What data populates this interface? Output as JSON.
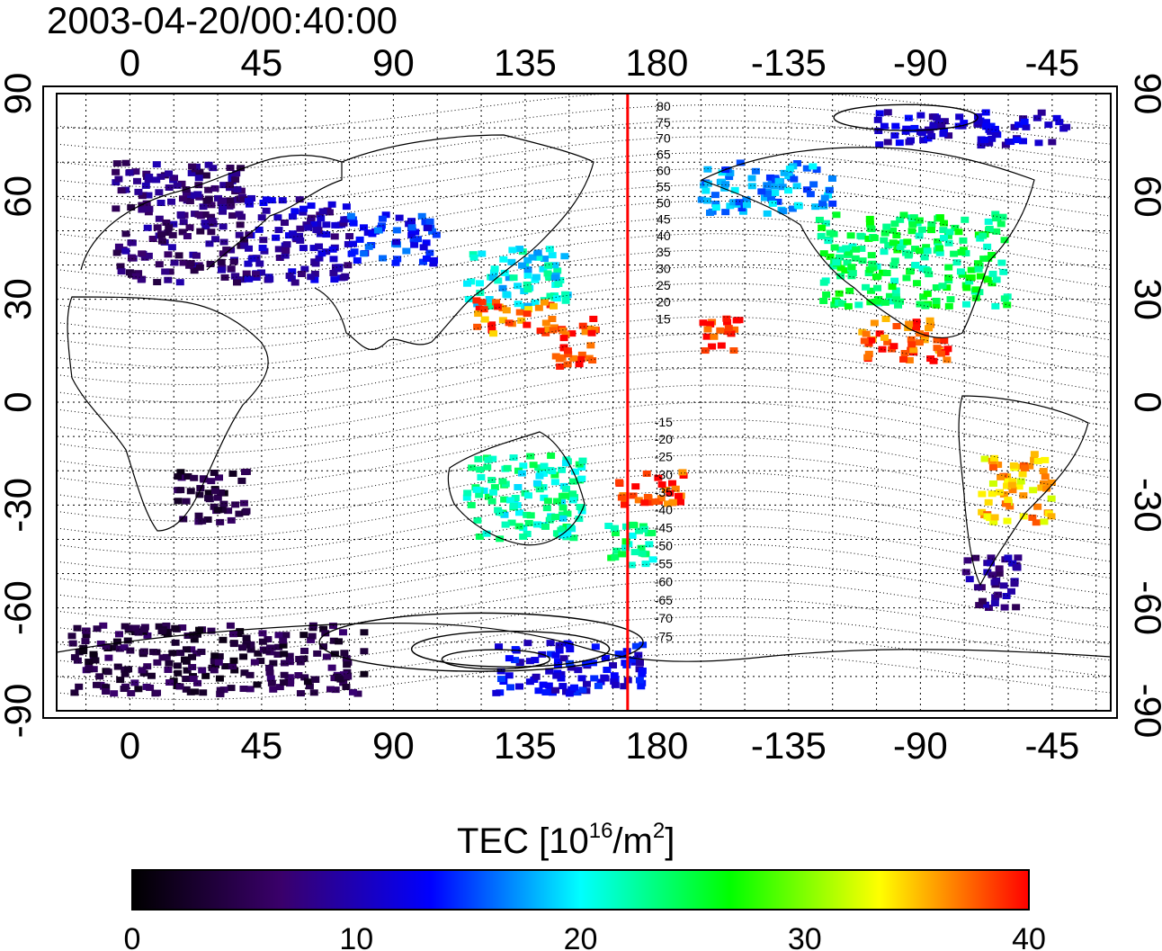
{
  "title": "2003-04-20/00:40:00",
  "x_ticks": [
    "0",
    "45",
    "90",
    "135",
    "180",
    "-135",
    "-90",
    "-45"
  ],
  "x_tick_lons": [
    0,
    45,
    90,
    135,
    180,
    225,
    270,
    315
  ],
  "y_ticks": [
    "90",
    "60",
    "30",
    "0",
    "-30",
    "-60",
    "-90"
  ],
  "y_tick_lats": [
    90,
    60,
    30,
    0,
    -30,
    -60,
    -90
  ],
  "contour_labels": [
    "80",
    "75",
    "70",
    "65",
    "60",
    "55",
    "50",
    "45",
    "40",
    "35",
    "30",
    "25",
    "20",
    "15",
    "-15",
    "-20",
    "-25",
    "-30",
    "-35",
    "-40",
    "-45",
    "-50",
    "-55",
    "-60",
    "-65",
    "-70",
    "-75"
  ],
  "colorbar": {
    "label_main": "TEC  [10",
    "label_sup1": "16",
    "label_mid": "/m",
    "label_sup2": "2",
    "label_end": "]",
    "min": 0,
    "max": 40,
    "ticks": [
      "0",
      "10",
      "20",
      "30",
      "40"
    ],
    "colors": [
      "#000000",
      "#3a006b",
      "#0000ff",
      "#00ffff",
      "#00ff00",
      "#ffff00",
      "#ff0000"
    ]
  },
  "meridian_line": {
    "lon": 170,
    "color": "#ff0000"
  },
  "chart_data": {
    "type": "map",
    "quantity": "TEC",
    "unit": "10^16/m^2",
    "scale": [
      0,
      40
    ],
    "x_range_lon": [
      -25,
      335
    ],
    "y_range_lat": [
      -90,
      90
    ],
    "grid": true,
    "regions": [
      {
        "lon": [
          -5,
          40
        ],
        "lat": [
          35,
          70
        ],
        "tec": 7
      },
      {
        "lon": [
          40,
          75
        ],
        "lat": [
          35,
          60
        ],
        "tec": 10
      },
      {
        "lon": [
          75,
          105
        ],
        "lat": [
          40,
          55
        ],
        "tec": 14
      },
      {
        "lon": [
          115,
          150
        ],
        "lat": [
          28,
          45
        ],
        "tec": 20
      },
      {
        "lon": [
          118,
          145
        ],
        "lat": [
          20,
          30
        ],
        "tec": 37
      },
      {
        "lon": [
          145,
          160
        ],
        "lat": [
          10,
          25
        ],
        "tec": 39
      },
      {
        "lon": [
          115,
          155
        ],
        "lat": [
          -40,
          -15
        ],
        "tec": 22
      },
      {
        "lon": [
          163,
          180
        ],
        "lat": [
          -48,
          -35
        ],
        "tec": 23
      },
      {
        "lon": [
          165,
          190
        ],
        "lat": [
          -30,
          -20
        ],
        "tec": 39
      },
      {
        "lon": [
          195,
          210
        ],
        "lat": [
          15,
          25
        ],
        "tec": 39
      },
      {
        "lon": [
          195,
          240
        ],
        "lat": [
          55,
          70
        ],
        "tec": 17
      },
      {
        "lon": [
          235,
          300
        ],
        "lat": [
          28,
          55
        ],
        "tec": 24
      },
      {
        "lon": [
          250,
          280
        ],
        "lat": [
          12,
          25
        ],
        "tec": 38
      },
      {
        "lon": [
          290,
          315
        ],
        "lat": [
          -35,
          -15
        ],
        "tec": 35
      },
      {
        "lon": [
          285,
          305
        ],
        "lat": [
          -60,
          -45
        ],
        "tec": 8
      },
      {
        "lon": [
          -20,
          80
        ],
        "lat": [
          -85,
          -65
        ],
        "tec": 4
      },
      {
        "lon": [
          15,
          40
        ],
        "lat": [
          -35,
          -20
        ],
        "tec": 4
      },
      {
        "lon": [
          125,
          175
        ],
        "lat": [
          -85,
          -70
        ],
        "tec": 12
      },
      {
        "lon": [
          255,
          320
        ],
        "lat": [
          75,
          85
        ],
        "tec": 11
      }
    ]
  }
}
